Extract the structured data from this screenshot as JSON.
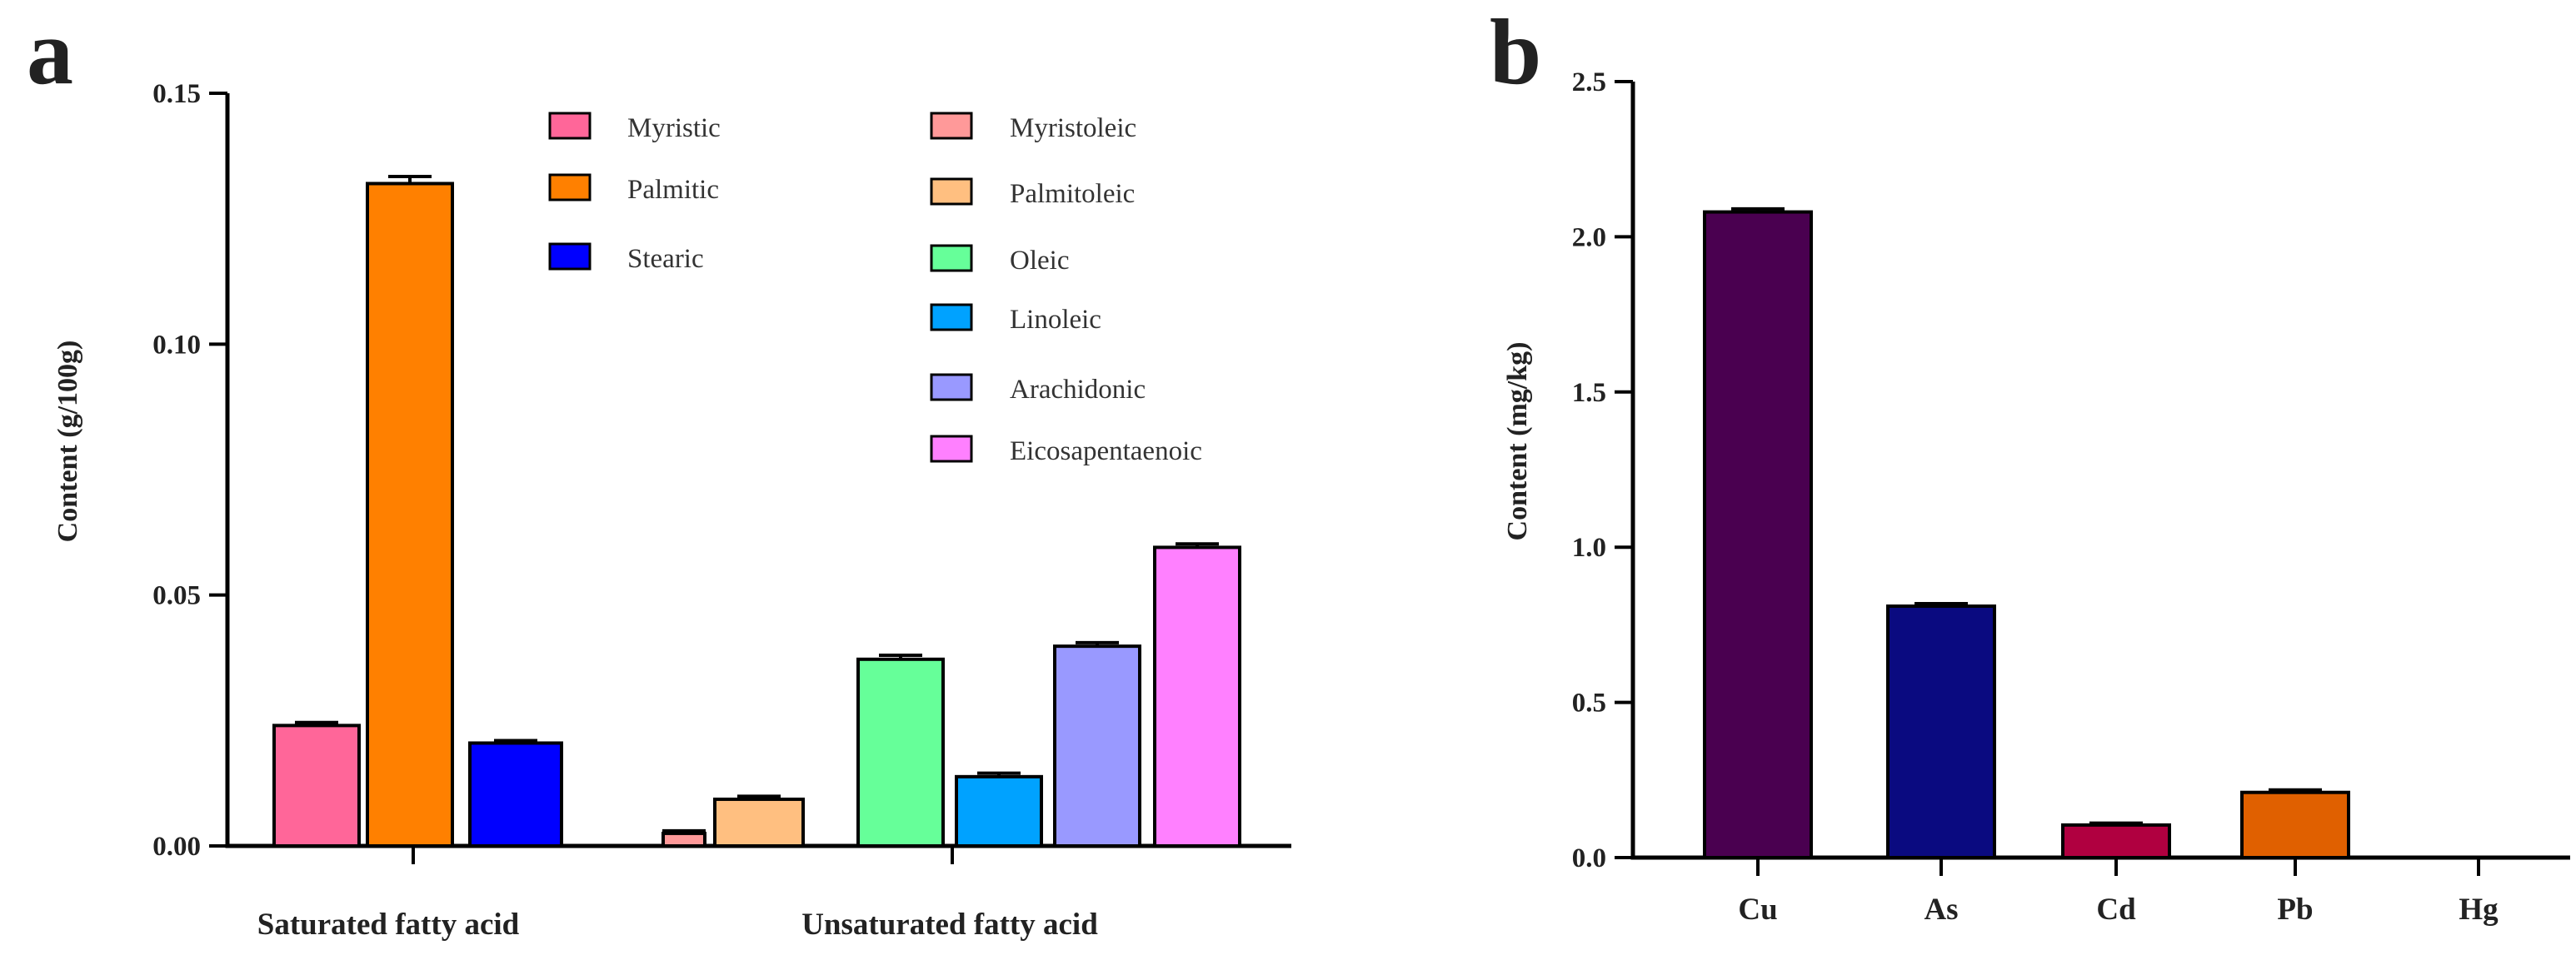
{
  "chart_data": [
    {
      "panel": "a",
      "type": "bar",
      "ylabel": "Content (g/100g)",
      "ylim": [
        0,
        0.15
      ],
      "yticks": [
        0.0,
        0.05,
        0.1,
        0.15
      ],
      "ytick_labels": [
        "0.00",
        "0.05",
        "0.10",
        "0.15"
      ],
      "groups": [
        {
          "label": "Saturated fatty acid",
          "series": [
            {
              "name": "Myristic",
              "value": 0.024,
              "error": 0.0006,
              "color": "#ff6699"
            },
            {
              "name": "Palmitic",
              "value": 0.132,
              "error": 0.0014,
              "color": "#ff8000"
            },
            {
              "name": "Stearic",
              "value": 0.0205,
              "error": 0.0005,
              "color": "#0000ff"
            }
          ]
        },
        {
          "label": "Unsaturated fatty acid",
          "series": [
            {
              "name": "Myristoleic",
              "value": 0.0025,
              "error": 0.0005,
              "color": "#ff9999"
            },
            {
              "name": "Palmitoleic",
              "value": 0.0093,
              "error": 0.0006,
              "color": "#ffbf80"
            },
            {
              "name": "Oleic",
              "value": 0.0372,
              "error": 0.0008,
              "color": "#66ff99"
            },
            {
              "name": "Linoleic",
              "value": 0.0138,
              "error": 0.0007,
              "color": "#00a2ff"
            },
            {
              "name": "Arachidonic",
              "value": 0.0398,
              "error": 0.0007,
              "color": "#9999ff"
            },
            {
              "name": "Eicosapentaenoic",
              "value": 0.0595,
              "error": 0.0007,
              "color": "#ff80ff"
            }
          ]
        }
      ],
      "legend_placement": "top-right, two columns"
    },
    {
      "panel": "b",
      "type": "bar",
      "ylabel": "Content (mg/kg)",
      "ylim": [
        0,
        2.5
      ],
      "yticks": [
        0.0,
        0.5,
        1.0,
        1.5,
        2.0,
        2.5
      ],
      "ytick_labels": [
        "0.0",
        "0.5",
        "1.0",
        "1.5",
        "2.0",
        "2.5"
      ],
      "categories": [
        "Cu",
        "As",
        "Cd",
        "Pb",
        "Hg"
      ],
      "values": [
        2.08,
        0.81,
        0.105,
        0.21,
        0
      ],
      "errors": [
        0.01,
        0.008,
        0.006,
        0.008,
        0
      ],
      "colors": [
        "#4a0050",
        "#0a0a80",
        "#b00040",
        "#e06000",
        "#8a8a8a"
      ]
    }
  ]
}
